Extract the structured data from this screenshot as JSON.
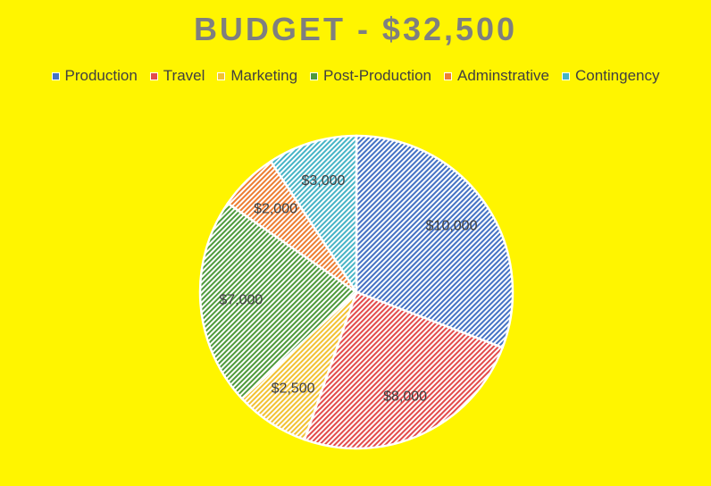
{
  "chart_data": {
    "type": "pie",
    "title": "BUDGET - $32,500",
    "legend_position": "top",
    "categories": [
      "Production",
      "Travel",
      "Marketing",
      "Post-Production",
      "Adminstrative",
      "Contingency"
    ],
    "values": [
      10000,
      8000,
      2500,
      7000,
      2000,
      3000
    ],
    "data_labels": [
      "$10,000",
      "$8,000",
      "$2,500",
      "$7,000",
      "$2,000",
      "$3,000"
    ],
    "colors": [
      "#8FAADC",
      "#F4A0A0",
      "#FFE08A",
      "#A9D18E",
      "#F8B48A",
      "#9DDCE6"
    ],
    "stroke_colors": [
      "#4472C4",
      "#E34B4B",
      "#F2C232",
      "#4E9A3C",
      "#ED7D31",
      "#46B4C6"
    ],
    "pattern": "diagonal-hatch",
    "start": "top, clockwise"
  },
  "background_color": "#FFF500"
}
